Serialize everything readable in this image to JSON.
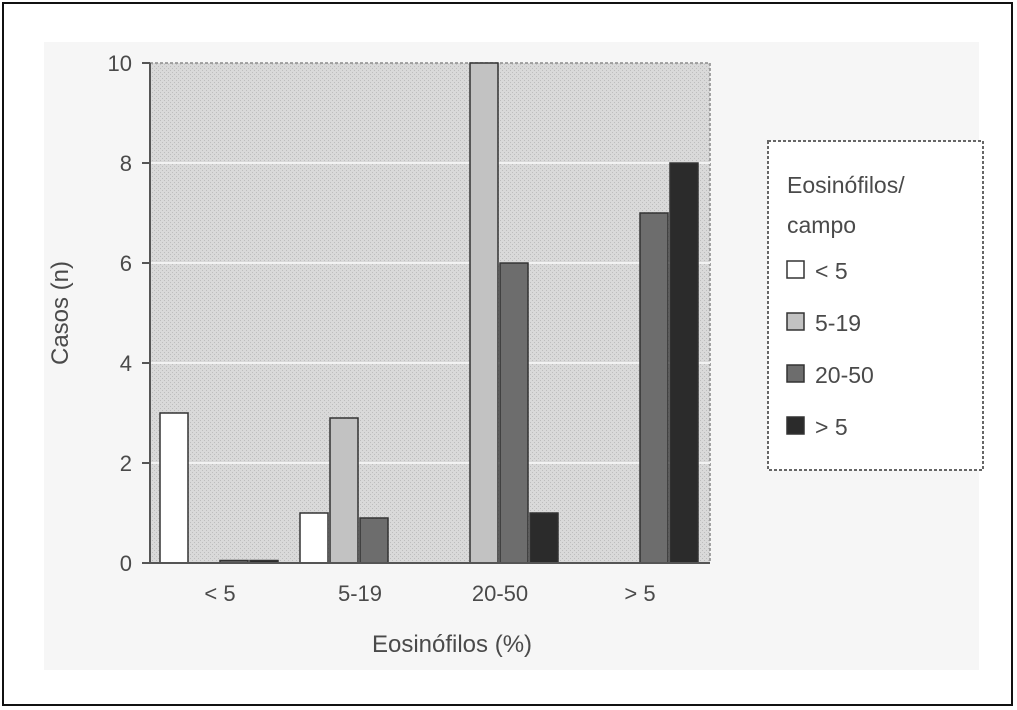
{
  "chart_data": {
    "type": "bar",
    "categories": [
      "< 5",
      "5-19",
      "20-50",
      "> 5"
    ],
    "series": [
      {
        "name": "< 5",
        "values": [
          3,
          1,
          0,
          0
        ],
        "color": "#ffffff"
      },
      {
        "name": "5-19",
        "values": [
          0,
          2.9,
          10,
          0
        ],
        "color": "#c2c2c2"
      },
      {
        "name": "20-50",
        "values": [
          0.05,
          0.9,
          6,
          7
        ],
        "color": "#6d6d6d"
      },
      {
        "name": "> 5",
        "values": [
          0.05,
          0,
          1,
          8
        ],
        "color": "#2b2b2b"
      }
    ],
    "xlabel": "Eosinófilos (%)",
    "ylabel": "Casos (n)",
    "ylim": [
      0,
      10
    ],
    "yticks": [
      0,
      2,
      4,
      6,
      8,
      10
    ],
    "grid": true,
    "legend": {
      "title_line1": "Eosinófilos/",
      "title_line2": "campo",
      "placement": "right"
    }
  }
}
